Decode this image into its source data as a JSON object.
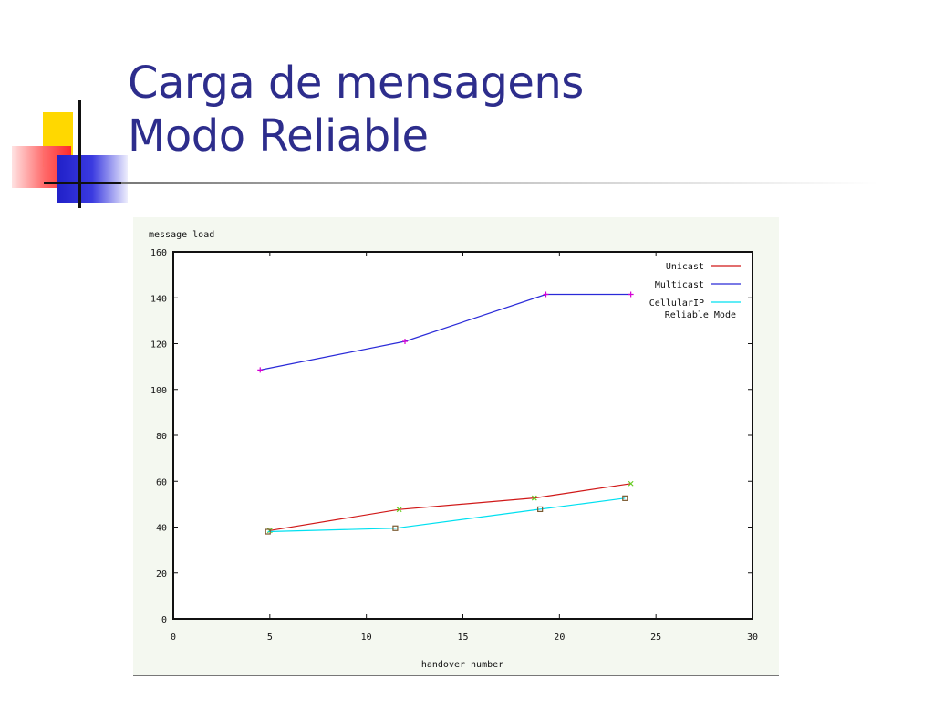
{
  "slide": {
    "title_line1": "Carga de mensagens",
    "title_line2": "Modo Reliable"
  },
  "colors": {
    "title": "#2d2d8c",
    "unicast": "#d01818",
    "multicast": "#2a2ad8",
    "cellularip": "#00e0f0",
    "multicast_marker": "#d400d4",
    "unicast_marker": "#66cc22",
    "cellularip_marker": "#7a5a30"
  },
  "chart_data": {
    "type": "line",
    "title": "",
    "xlabel": "handover number",
    "ylabel": "message load",
    "xlim": [
      0,
      30
    ],
    "ylim": [
      0,
      160
    ],
    "xticks": [
      0,
      5,
      10,
      15,
      20,
      25,
      30
    ],
    "yticks": [
      0,
      20,
      40,
      60,
      80,
      100,
      120,
      140,
      160
    ],
    "grid": false,
    "legend_position": "top-right",
    "series": [
      {
        "name": "Unicast",
        "color": "#d01818",
        "marker": "x",
        "marker_color": "#66cc22",
        "x": [
          5,
          11.7,
          18.7,
          23.7
        ],
        "y": [
          38.5,
          47.7,
          52.7,
          59
        ]
      },
      {
        "name": "Multicast",
        "color": "#2a2ad8",
        "marker": "plus",
        "marker_color": "#d400d4",
        "x": [
          4.5,
          12,
          19.3,
          23.7
        ],
        "y": [
          108.5,
          121,
          141.5,
          141.5
        ]
      },
      {
        "name": "CellularIP\nReliable Mode",
        "color": "#00e0f0",
        "marker": "square",
        "marker_color": "#7a5a30",
        "x": [
          4.9,
          11.5,
          19,
          23.4
        ],
        "y": [
          38,
          39.5,
          47.8,
          52.6
        ]
      }
    ]
  }
}
